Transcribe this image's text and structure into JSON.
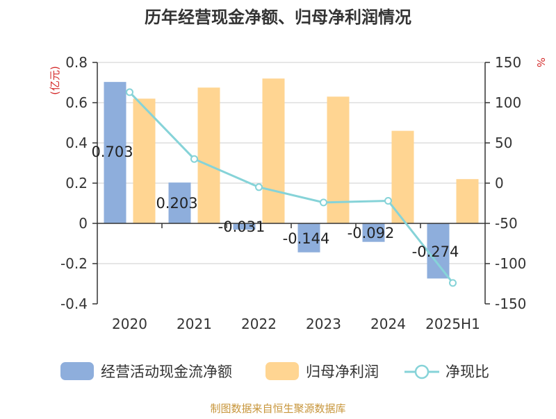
{
  "chart_data": {
    "type": "bar",
    "title": "历年经营现金净额、归母净利润情况",
    "categories": [
      "2020",
      "2021",
      "2022",
      "2023",
      "2024",
      "2025H1"
    ],
    "left_axis": {
      "unit_label": "(亿元)",
      "ylim": [
        -0.4,
        0.8
      ],
      "ticks": [
        "0.8",
        "0.6",
        "0.4",
        "0.2",
        "0",
        "-0.2",
        "-0.4"
      ],
      "tick_values": [
        0.8,
        0.6,
        0.4,
        0.2,
        0,
        -0.2,
        -0.4
      ]
    },
    "right_axis": {
      "unit_label": "%",
      "ylim": [
        -150,
        150
      ],
      "ticks": [
        "150",
        "100",
        "50",
        "0",
        "-50",
        "-100",
        "-150"
      ],
      "tick_values": [
        150,
        100,
        50,
        0,
        -50,
        -100,
        -150
      ]
    },
    "series": [
      {
        "name": "经营活动现金流净额",
        "type": "bar",
        "axis": "left",
        "color": "#8eaedc",
        "values": [
          0.703,
          0.203,
          -0.031,
          -0.144,
          -0.092,
          -0.274
        ],
        "labels": [
          "0.703",
          "0.203",
          "-0.031",
          "-0.144",
          "-0.092",
          "-0.274"
        ]
      },
      {
        "name": "归母净利润",
        "type": "bar",
        "axis": "left",
        "color": "#ffd592",
        "values": [
          0.62,
          0.675,
          0.72,
          0.63,
          0.46,
          0.22
        ]
      },
      {
        "name": "净现比",
        "type": "line",
        "axis": "right",
        "color": "#86d3d8",
        "values": [
          113,
          30,
          -5,
          -24,
          -22,
          -124
        ]
      }
    ],
    "grid": true,
    "legend_position": "bottom"
  },
  "source_note": "制图数据来自恒生聚源数据库"
}
